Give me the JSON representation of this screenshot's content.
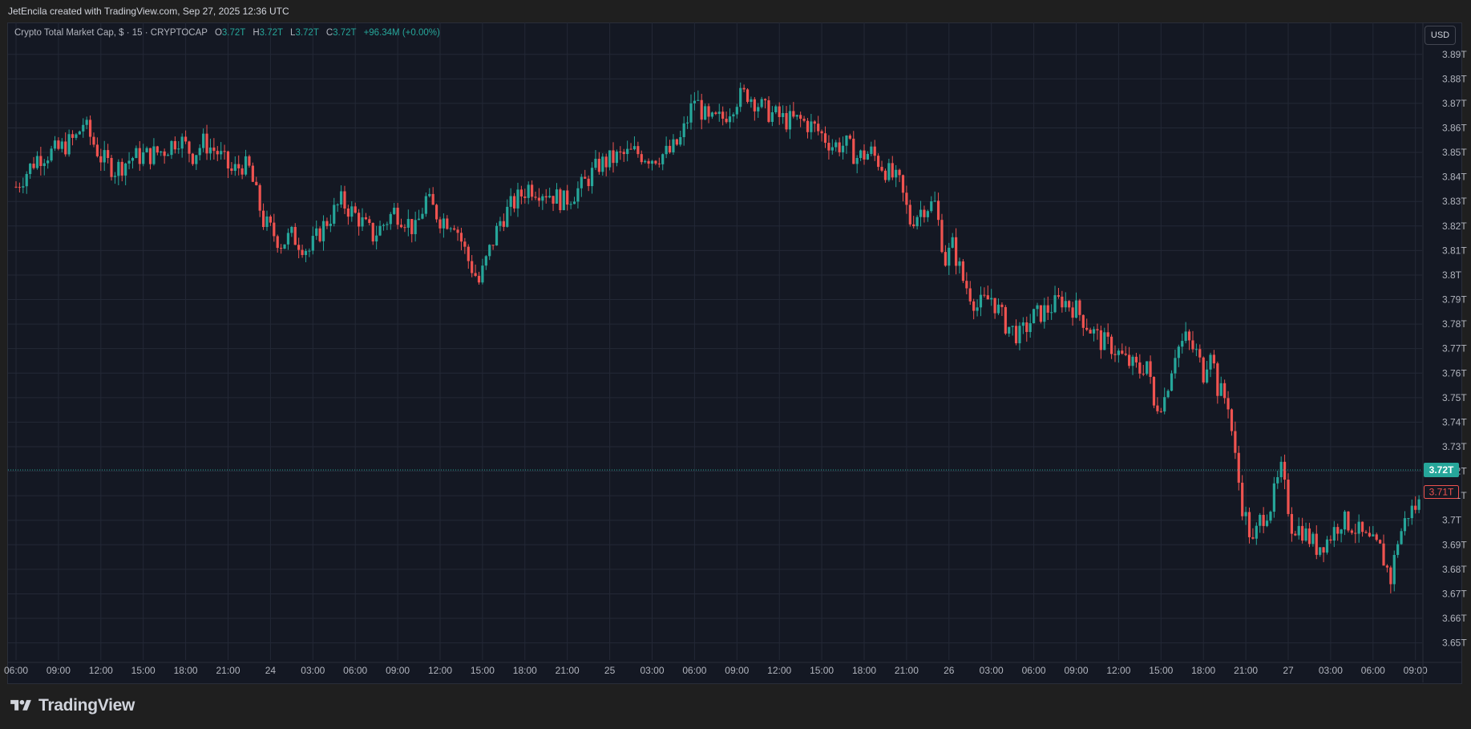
{
  "header": {
    "attribution": "JetEncila created with TradingView.com, Sep 27, 2025 12:36 UTC"
  },
  "legend": {
    "symbol": "Crypto Total Market Cap, $ · 15 · CRYPTOCAP",
    "o_label": "O",
    "o_value": "3.72T",
    "h_label": "H",
    "h_value": "3.72T",
    "l_label": "L",
    "l_value": "3.72T",
    "c_label": "C",
    "c_value": "3.72T",
    "change": "+96.34M (+0.00%)"
  },
  "currency_button": "USD",
  "footer": {
    "brand": "TradingView"
  },
  "colors": {
    "up": "#26a69a",
    "down": "#ef5350",
    "background": "#141823",
    "grid": "#232836",
    "axis_text": "#b2b5be"
  },
  "chart_data": {
    "type": "candlestick",
    "y_unit": "T",
    "ylim": [
      3.643,
      3.903
    ],
    "y_ticks": [
      "3.65T",
      "3.66T",
      "3.67T",
      "3.68T",
      "3.69T",
      "3.7T",
      "3.71T",
      "3.72T",
      "3.73T",
      "3.74T",
      "3.75T",
      "3.76T",
      "3.77T",
      "3.78T",
      "3.79T",
      "3.8T",
      "3.81T",
      "3.82T",
      "3.83T",
      "3.84T",
      "3.85T",
      "3.86T",
      "3.87T",
      "3.88T",
      "3.89T"
    ],
    "y_tick_values": [
      3.65,
      3.66,
      3.67,
      3.68,
      3.69,
      3.7,
      3.71,
      3.72,
      3.73,
      3.74,
      3.75,
      3.76,
      3.77,
      3.78,
      3.79,
      3.8,
      3.81,
      3.82,
      3.83,
      3.84,
      3.85,
      3.86,
      3.87,
      3.88,
      3.89
    ],
    "x_labels": [
      "06:00",
      "09:00",
      "12:00",
      "15:00",
      "18:00",
      "21:00",
      "24",
      "03:00",
      "06:00",
      "09:00",
      "12:00",
      "15:00",
      "18:00",
      "21:00",
      "25",
      "03:00",
      "06:00",
      "09:00",
      "12:00",
      "15:00",
      "18:00",
      "21:00",
      "26",
      "03:00",
      "06:00",
      "09:00",
      "12:00",
      "15:00",
      "18:00",
      "21:00",
      "27",
      "03:00",
      "06:00",
      "09:00"
    ],
    "x_start_index": 0,
    "candles_per_label": 12,
    "path_points": [
      [
        0,
        3.836
      ],
      [
        6,
        3.848
      ],
      [
        12,
        3.851
      ],
      [
        17,
        3.856
      ],
      [
        19,
        3.862
      ],
      [
        24,
        3.848
      ],
      [
        28,
        3.843
      ],
      [
        33,
        3.848
      ],
      [
        38,
        3.849
      ],
      [
        42,
        3.851
      ],
      [
        46,
        3.856
      ],
      [
        50,
        3.849
      ],
      [
        53,
        3.854
      ],
      [
        57,
        3.85
      ],
      [
        61,
        3.842
      ],
      [
        64,
        3.845
      ],
      [
        66,
        3.843
      ],
      [
        70,
        3.822
      ],
      [
        75,
        3.813
      ],
      [
        78,
        3.816
      ],
      [
        83,
        3.81
      ],
      [
        87,
        3.82
      ],
      [
        92,
        3.83
      ],
      [
        97,
        3.823
      ],
      [
        101,
        3.816
      ],
      [
        103,
        3.819
      ],
      [
        107,
        3.826
      ],
      [
        110,
        3.823
      ],
      [
        113,
        3.818
      ],
      [
        116,
        3.831
      ],
      [
        120,
        3.823
      ],
      [
        124,
        3.822
      ],
      [
        128,
        3.806
      ],
      [
        131,
        3.797
      ],
      [
        134,
        3.81
      ],
      [
        137,
        3.822
      ],
      [
        140,
        3.828
      ],
      [
        145,
        3.836
      ],
      [
        150,
        3.834
      ],
      [
        155,
        3.83
      ],
      [
        160,
        3.836
      ],
      [
        165,
        3.845
      ],
      [
        170,
        3.848
      ],
      [
        175,
        3.85
      ],
      [
        180,
        3.848
      ],
      [
        185,
        3.85
      ],
      [
        188,
        3.855
      ],
      [
        192,
        3.872
      ],
      [
        196,
        3.862
      ],
      [
        200,
        3.864
      ],
      [
        204,
        3.872
      ],
      [
        207,
        3.874
      ],
      [
        212,
        3.867
      ],
      [
        218,
        3.863
      ],
      [
        222,
        3.863
      ],
      [
        226,
        3.86
      ],
      [
        231,
        3.853
      ],
      [
        235,
        3.853
      ],
      [
        238,
        3.848
      ],
      [
        242,
        3.85
      ],
      [
        246,
        3.843
      ],
      [
        250,
        3.837
      ],
      [
        253,
        3.822
      ],
      [
        257,
        3.828
      ],
      [
        260,
        3.829
      ],
      [
        263,
        3.806
      ],
      [
        265,
        3.812
      ],
      [
        268,
        3.798
      ],
      [
        272,
        3.787
      ],
      [
        276,
        3.791
      ],
      [
        280,
        3.78
      ],
      [
        284,
        3.775
      ],
      [
        288,
        3.783
      ],
      [
        292,
        3.786
      ],
      [
        296,
        3.79
      ],
      [
        300,
        3.786
      ],
      [
        304,
        3.778
      ],
      [
        307,
        3.773
      ],
      [
        310,
        3.771
      ],
      [
        314,
        3.765
      ],
      [
        318,
        3.761
      ],
      [
        320,
        3.765
      ],
      [
        322,
        3.746
      ],
      [
        325,
        3.75
      ],
      [
        328,
        3.769
      ],
      [
        331,
        3.774
      ],
      [
        334,
        3.768
      ],
      [
        336,
        3.76
      ],
      [
        338,
        3.771
      ],
      [
        340,
        3.754
      ],
      [
        343,
        3.748
      ],
      [
        345,
        3.725
      ],
      [
        347,
        3.706
      ],
      [
        350,
        3.69
      ],
      [
        352,
        3.7
      ],
      [
        355,
        3.706
      ],
      [
        358,
        3.72
      ],
      [
        361,
        3.698
      ],
      [
        364,
        3.696
      ],
      [
        368,
        3.689
      ],
      [
        371,
        3.692
      ],
      [
        375,
        3.7
      ],
      [
        378,
        3.698
      ],
      [
        382,
        3.692
      ],
      [
        386,
        3.688
      ],
      [
        389,
        3.676
      ],
      [
        391,
        3.692
      ],
      [
        394,
        3.703
      ],
      [
        398,
        3.708
      ],
      [
        402,
        3.71
      ],
      [
        406,
        3.708
      ],
      [
        410,
        3.71
      ],
      [
        414,
        3.704
      ],
      [
        418,
        3.706
      ],
      [
        422,
        3.71
      ],
      [
        426,
        3.703
      ],
      [
        430,
        3.696
      ],
      [
        434,
        3.698
      ],
      [
        437,
        3.705
      ],
      [
        441,
        3.706
      ],
      [
        446,
        3.708
      ],
      [
        450,
        3.705
      ],
      [
        452,
        3.697
      ],
      [
        455,
        3.685
      ],
      [
        458,
        3.68
      ],
      [
        461,
        3.673
      ],
      [
        464,
        3.674
      ],
      [
        467,
        3.683
      ],
      [
        470,
        3.682
      ],
      [
        473,
        3.7
      ],
      [
        477,
        3.706
      ],
      [
        481,
        3.711
      ],
      [
        484,
        3.69
      ],
      [
        488,
        3.683
      ],
      [
        491,
        3.69
      ],
      [
        494,
        3.701
      ],
      [
        497,
        3.712
      ],
      [
        500,
        3.72
      ],
      [
        503,
        3.73
      ],
      [
        506,
        3.738
      ],
      [
        509,
        3.744
      ],
      [
        511,
        3.736
      ],
      [
        514,
        3.72
      ],
      [
        516,
        3.716
      ],
      [
        519,
        3.718
      ],
      [
        522,
        3.722
      ],
      [
        526,
        3.726
      ],
      [
        530,
        3.73
      ],
      [
        534,
        3.733
      ],
      [
        538,
        3.732
      ],
      [
        542,
        3.726
      ],
      [
        546,
        3.728
      ],
      [
        550,
        3.732
      ],
      [
        554,
        3.735
      ],
      [
        558,
        3.733
      ],
      [
        562,
        3.732
      ],
      [
        566,
        3.729
      ],
      [
        569,
        3.724
      ],
      [
        572,
        3.722
      ],
      [
        575,
        3.71
      ],
      [
        576,
        3.71
      ]
    ],
    "last_price_label": "3.72T",
    "last_price": 3.7205,
    "low_marker_label": "3.71T",
    "low_marker_value": 3.7115
  }
}
